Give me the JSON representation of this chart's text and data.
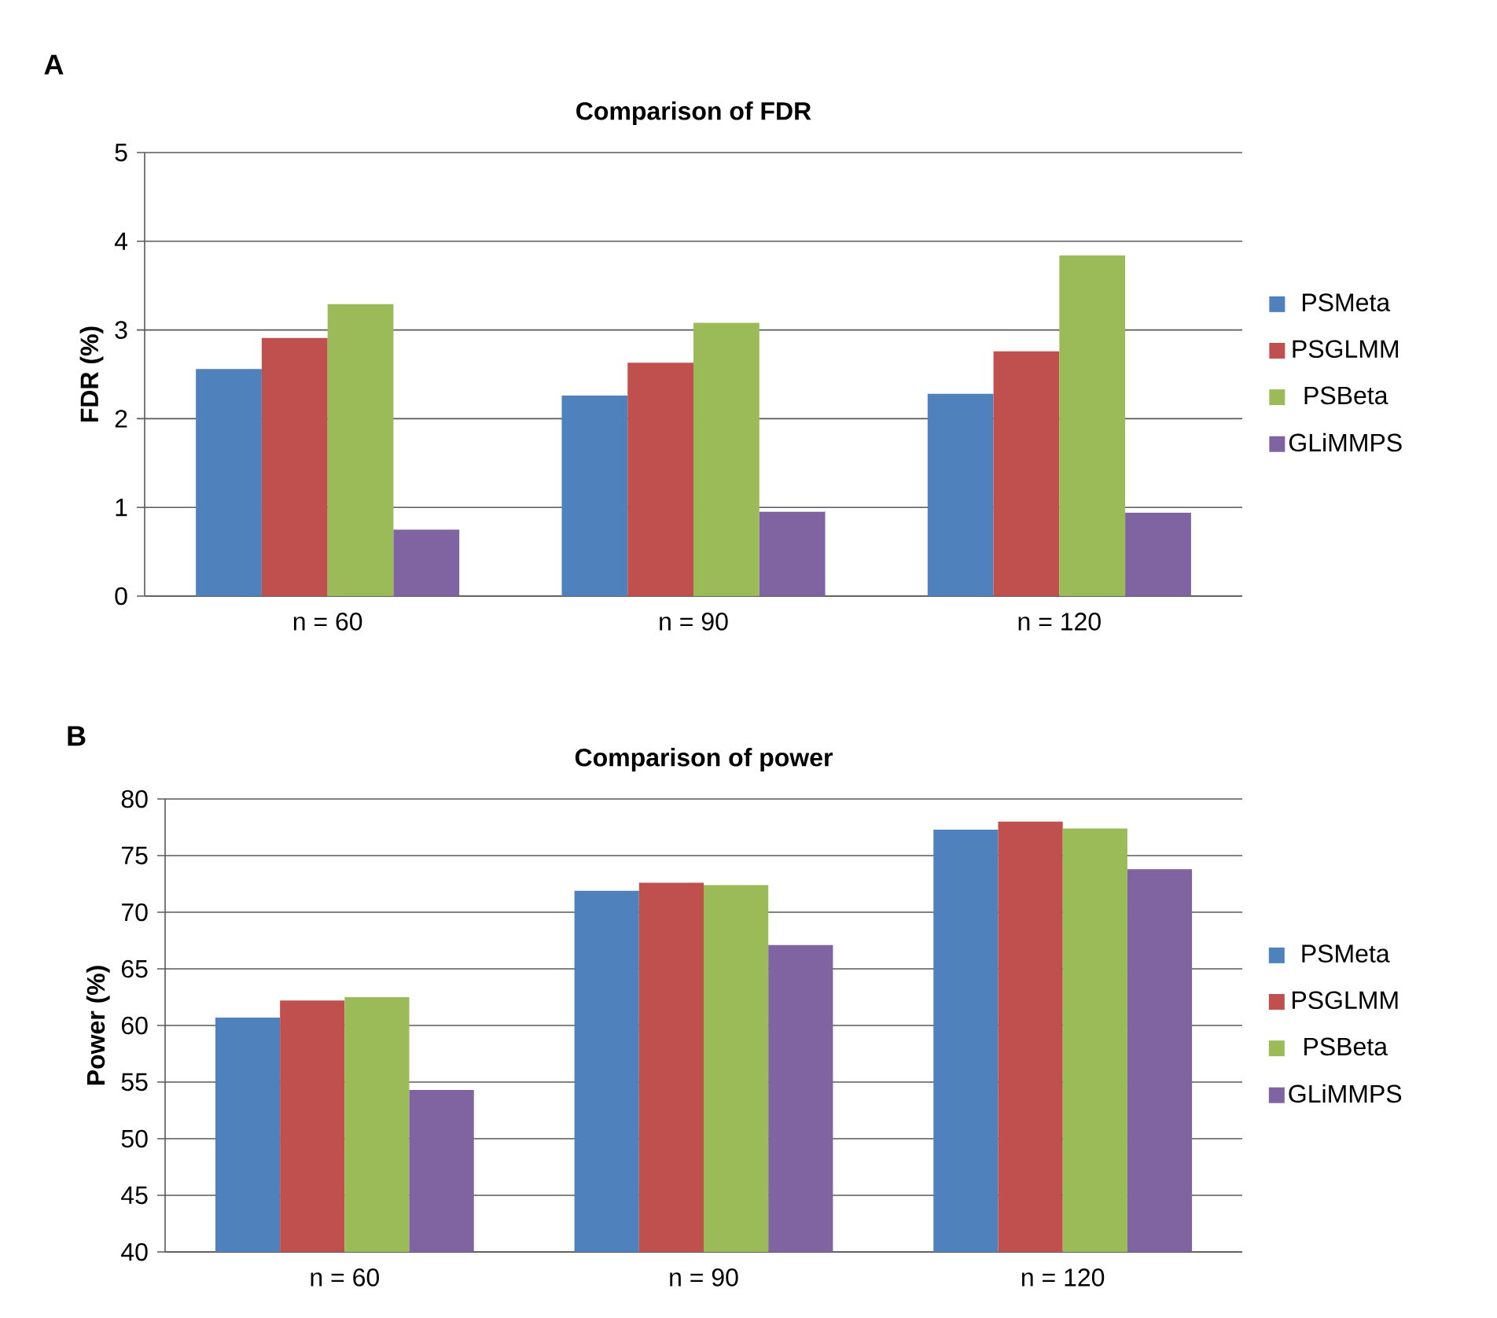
{
  "chart_data": [
    {
      "type": "bar",
      "title": "Comparison of FDR",
      "ylabel": "FDR (%)",
      "annotations": [
        "A"
      ],
      "categories": [
        "n = 60",
        "n = 90",
        "n = 120"
      ],
      "series": [
        {
          "name": "PSMeta",
          "color": "#4f81bd",
          "values": [
            2.56,
            2.26,
            2.28
          ]
        },
        {
          "name": "PSGLMM",
          "color": "#c0504d",
          "values": [
            2.91,
            2.63,
            2.76
          ]
        },
        {
          "name": "PSBeta",
          "color": "#9bbb59",
          "values": [
            3.29,
            3.08,
            3.84
          ]
        },
        {
          "name": "GLiMMPS",
          "color": "#8064a2",
          "values": [
            0.75,
            0.95,
            0.94
          ]
        }
      ],
      "ylim": [
        0,
        5
      ],
      "yticks": [
        0,
        1,
        2,
        3,
        4,
        5
      ],
      "grid": "y",
      "legend": "right"
    },
    {
      "type": "bar",
      "title": "Comparison of power",
      "ylabel": "Power (%)",
      "annotations": [
        "B"
      ],
      "categories": [
        "n = 60",
        "n = 90",
        "n = 120"
      ],
      "series": [
        {
          "name": "PSMeta",
          "color": "#4f81bd",
          "values": [
            60.7,
            71.9,
            77.3
          ]
        },
        {
          "name": "PSGLMM",
          "color": "#c0504d",
          "values": [
            62.2,
            72.6,
            78.0
          ]
        },
        {
          "name": "PSBeta",
          "color": "#9bbb59",
          "values": [
            62.5,
            72.4,
            77.4
          ]
        },
        {
          "name": "GLiMMPS",
          "color": "#8064a2",
          "values": [
            54.3,
            67.1,
            73.8
          ]
        }
      ],
      "ylim": [
        40,
        80
      ],
      "yticks": [
        40,
        45,
        50,
        55,
        60,
        65,
        70,
        75,
        80
      ],
      "grid": "y",
      "legend": "right"
    }
  ]
}
